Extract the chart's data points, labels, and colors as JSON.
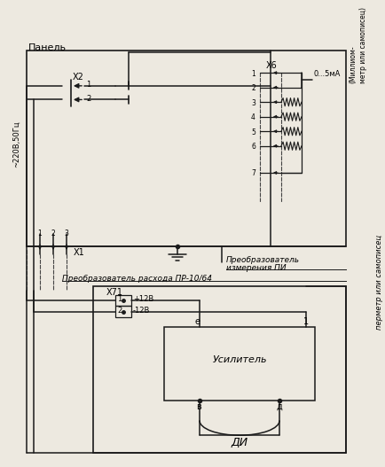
{
  "bg": "#ede9e0",
  "lc": "#1a1a1a",
  "dc": "#444444",
  "panel_text": "Панель",
  "x2_label": "Х2",
  "x6_label": "Х6",
  "x1_label": "Х1",
  "x71_label": "Х71",
  "v220": "~220В,50Гц",
  "milliamp": "0...5мА",
  "milli1": "(Миллиом-",
  "milli2": "метр или самописец)",
  "perimet": "перметр или самописец",
  "preobr1_1": "Преобразователь",
  "preobr1_2": "измерения ПИ",
  "preobr2": "Преобразователь расхода ПР-10/64",
  "plus12": "+12В",
  "minus12": "-12В",
  "usil": "Усилитель",
  "di": "ДИ",
  "fig_w": 4.34,
  "fig_h": 5.27,
  "dpi": 100
}
